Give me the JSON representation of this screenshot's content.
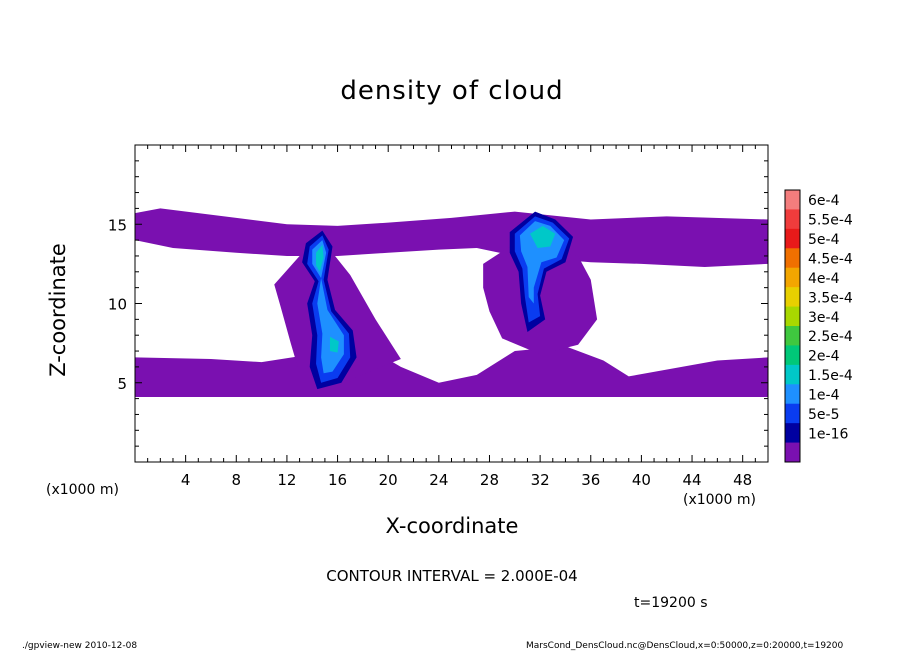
{
  "chart_data": {
    "type": "heatmap",
    "title": "density of cloud",
    "xlabel": "X-coordinate",
    "ylabel": "Z-coordinate",
    "x_unit": "(x1000 m)",
    "xlim": [
      0,
      50
    ],
    "ylim": [
      0,
      20
    ],
    "xticks": [
      4,
      8,
      12,
      16,
      20,
      24,
      28,
      32,
      36,
      40,
      44,
      48
    ],
    "yticks": [
      5,
      10,
      15
    ],
    "colorbar": {
      "levels": [
        "6e-4",
        "5.5e-4",
        "5e-4",
        "4.5e-4",
        "4e-4",
        "3.5e-4",
        "3e-4",
        "2.5e-4",
        "2e-4",
        "1.5e-4",
        "1e-4",
        "5e-5",
        "1e-16"
      ],
      "colors": [
        "#f47d7d",
        "#f03c3c",
        "#e81a1a",
        "#f07000",
        "#f3a600",
        "#e8d000",
        "#a8d800",
        "#3fc83f",
        "#00c878",
        "#00c8c8",
        "#1e90ff",
        "#0a3cf0",
        "#0000a0",
        "#7a10b0"
      ]
    },
    "regions": [
      {
        "name": "lower band",
        "x": [
          0,
          50
        ],
        "z": [
          4.1,
          6.6
        ],
        "value": "1e-16"
      },
      {
        "name": "upper band",
        "x": [
          0,
          50
        ],
        "z": [
          13.2,
          15.9
        ],
        "value": "1e-16"
      },
      {
        "name": "left plume",
        "x": [
          11,
          19
        ],
        "z": [
          4.5,
          14.6
        ],
        "peak": "1.5e-4"
      },
      {
        "name": "right plume",
        "x": [
          28,
          36
        ],
        "z": [
          7,
          15.9
        ],
        "peak": "1.5e-4"
      }
    ],
    "contour_interval": "CONTOUR INTERVAL = 2.000E-04",
    "time": "t=19200 s"
  },
  "footer": {
    "left": "./gpview-new   2010-12-08",
    "right": "MarsCond_DensCloud.nc@DensCloud,x=0:50000,z=0:20000,t=19200"
  }
}
